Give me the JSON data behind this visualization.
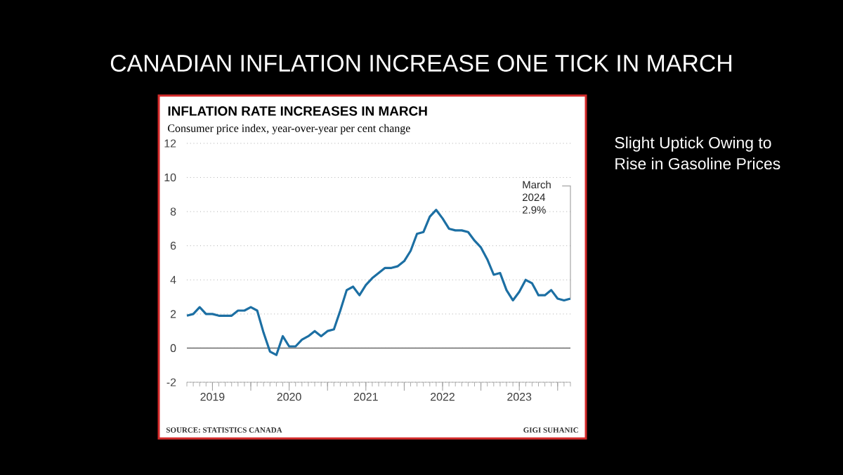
{
  "chart_data": {
    "type": "line",
    "title": "INFLATION RATE INCREASES IN MARCH",
    "subtitle": "Consumer price index, year-over-year per cent change",
    "x": [
      "2019-03",
      "2019-04",
      "2019-05",
      "2019-06",
      "2019-07",
      "2019-08",
      "2019-09",
      "2019-10",
      "2019-11",
      "2019-12",
      "2020-01",
      "2020-02",
      "2020-03",
      "2020-04",
      "2020-05",
      "2020-06",
      "2020-07",
      "2020-08",
      "2020-09",
      "2020-10",
      "2020-11",
      "2020-12",
      "2021-01",
      "2021-02",
      "2021-03",
      "2021-04",
      "2021-05",
      "2021-06",
      "2021-07",
      "2021-08",
      "2021-09",
      "2021-10",
      "2021-11",
      "2021-12",
      "2022-01",
      "2022-02",
      "2022-03",
      "2022-04",
      "2022-05",
      "2022-06",
      "2022-07",
      "2022-08",
      "2022-09",
      "2022-10",
      "2022-11",
      "2022-12",
      "2023-01",
      "2023-02",
      "2023-03",
      "2023-04",
      "2023-05",
      "2023-06",
      "2023-07",
      "2023-08",
      "2023-09",
      "2023-10",
      "2023-11",
      "2023-12",
      "2024-01",
      "2024-02",
      "2024-03"
    ],
    "series": [
      {
        "color": "#1c6fa3",
        "values": [
          1.9,
          2.0,
          2.4,
          2.0,
          2.0,
          1.9,
          1.9,
          1.9,
          2.2,
          2.2,
          2.4,
          2.2,
          0.9,
          -0.2,
          -0.4,
          0.7,
          0.1,
          0.1,
          0.5,
          0.7,
          1.0,
          0.7,
          1.0,
          1.1,
          2.2,
          3.4,
          3.6,
          3.1,
          3.7,
          4.1,
          4.4,
          4.7,
          4.7,
          4.8,
          5.1,
          5.7,
          6.7,
          6.8,
          7.7,
          8.1,
          7.6,
          7.0,
          6.9,
          6.9,
          6.8,
          6.3,
          5.9,
          5.2,
          4.3,
          4.4,
          3.4,
          2.8,
          3.3,
          4.0,
          3.8,
          3.1,
          3.1,
          3.4,
          2.9,
          2.8,
          2.9
        ]
      }
    ],
    "xlim": [
      "2019-03",
      "2024-03"
    ],
    "xticks": [
      {
        "value": "2019-07-01",
        "label": "2019"
      },
      {
        "value": "2020-01",
        "label": null
      },
      {
        "value": "2020-07-01",
        "label": "2020"
      },
      {
        "value": "2021-01",
        "label": null
      },
      {
        "value": "2021-07-01",
        "label": "2021"
      },
      {
        "value": "2022-01",
        "label": null
      },
      {
        "value": "2022-07-01",
        "label": "2022"
      },
      {
        "value": "2023-01",
        "label": null
      },
      {
        "value": "2023-07-01",
        "label": "2023"
      },
      {
        "value": "2024-01",
        "label": null
      }
    ],
    "ylim": [
      -2,
      12
    ],
    "yticks": [
      -2,
      0,
      2,
      4,
      6,
      8,
      10,
      12
    ],
    "grid": "y",
    "ref_lines": [
      {
        "axis": "y",
        "value": 0,
        "color": "#555555"
      }
    ],
    "annotations": [
      "CANADIAN INFLATION INCREASE ONE TICK IN MARCH",
      "Slight Uptick Owing to Rise in Gasoline Prices",
      {
        "text": "March 2024 2.9%",
        "x": "2024-03",
        "y": 2.9
      },
      "SOURCE: STATISTICS CANADA",
      "GIGI SUHANIC"
    ]
  }
}
